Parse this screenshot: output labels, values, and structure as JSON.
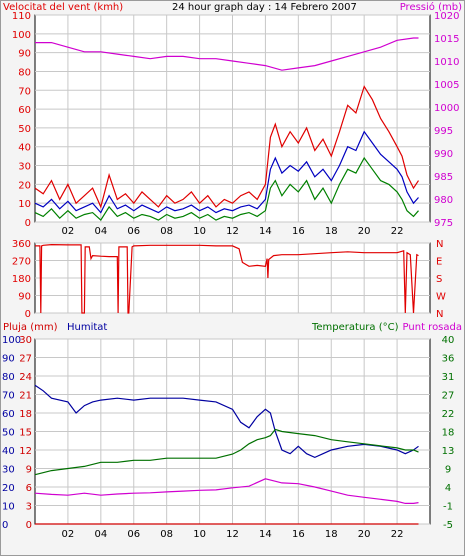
{
  "colors": {
    "wind": "#e00000",
    "wind_avg": "#0000c0",
    "wind_gust2": "#008000",
    "pressure": "#d000d0",
    "direction": "#e00000",
    "humidity": "#0000a0",
    "temperature": "#007000",
    "rain": "#d00000",
    "dewpoint": "#d000d0",
    "grid": "#c8c8c8",
    "axis": "#000000"
  },
  "chart_data": [
    {
      "type": "line",
      "title": "24 hour graph day : 14 Febrero 2007",
      "ylabel": "Velocitat del vent (kmh)",
      "y2label": "Pressió (mb)",
      "x_ticks": [
        "02",
        "04",
        "06",
        "08",
        "10",
        "12",
        "14",
        "16",
        "18",
        "20",
        "22"
      ],
      "x_range": [
        0,
        24
      ],
      "ylim": [
        0,
        110
      ],
      "y_ticks": [
        "0",
        "10",
        "20",
        "30",
        "40",
        "50",
        "60",
        "70",
        "80",
        "90",
        "100",
        "110"
      ],
      "y2lim": [
        975,
        1020
      ],
      "y2_ticks": [
        "975",
        "980",
        "985",
        "990",
        "995",
        "1000",
        "1005",
        "1010",
        "1015",
        "1020"
      ],
      "grid": true,
      "series": [
        {
          "key": "gust",
          "x": [
            0,
            0.5,
            1,
            1.5,
            2,
            2.5,
            3,
            3.5,
            4,
            4.5,
            5,
            5.5,
            6,
            6.5,
            7,
            7.5,
            8,
            8.5,
            9,
            9.5,
            10,
            10.5,
            11,
            11.5,
            12,
            12.5,
            13,
            13.5,
            14,
            14.3,
            14.6,
            15,
            15.5,
            16,
            16.5,
            17,
            17.5,
            18,
            18.5,
            19,
            19.5,
            20,
            20.5,
            21,
            21.5,
            22,
            22.3,
            22.6,
            23,
            23.3
          ],
          "values": [
            18,
            15,
            22,
            12,
            20,
            10,
            14,
            18,
            8,
            25,
            12,
            15,
            10,
            16,
            12,
            8,
            14,
            10,
            12,
            16,
            10,
            14,
            8,
            12,
            10,
            14,
            16,
            12,
            20,
            45,
            52,
            40,
            48,
            42,
            50,
            38,
            44,
            35,
            48,
            62,
            58,
            72,
            65,
            55,
            48,
            40,
            35,
            25,
            18,
            22
          ]
        },
        {
          "key": "avg",
          "x": [
            0,
            0.5,
            1,
            1.5,
            2,
            2.5,
            3,
            3.5,
            4,
            4.5,
            5,
            5.5,
            6,
            6.5,
            7,
            7.5,
            8,
            8.5,
            9,
            9.5,
            10,
            10.5,
            11,
            11.5,
            12,
            12.5,
            13,
            13.5,
            14,
            14.3,
            14.6,
            15,
            15.5,
            16,
            16.5,
            17,
            17.5,
            18,
            18.5,
            19,
            19.5,
            20,
            20.5,
            21,
            21.5,
            22,
            22.3,
            22.6,
            23,
            23.3
          ],
          "values": [
            10,
            8,
            12,
            7,
            11,
            6,
            8,
            10,
            5,
            14,
            7,
            9,
            6,
            9,
            7,
            5,
            8,
            6,
            7,
            9,
            6,
            8,
            5,
            7,
            6,
            8,
            9,
            7,
            12,
            28,
            34,
            26,
            30,
            27,
            32,
            24,
            28,
            22,
            30,
            40,
            38,
            48,
            42,
            36,
            32,
            28,
            24,
            16,
            10,
            13
          ]
        },
        {
          "key": "low",
          "x": [
            0,
            0.5,
            1,
            1.5,
            2,
            2.5,
            3,
            3.5,
            4,
            4.5,
            5,
            5.5,
            6,
            6.5,
            7,
            7.5,
            8,
            8.5,
            9,
            9.5,
            10,
            10.5,
            11,
            11.5,
            12,
            12.5,
            13,
            13.5,
            14,
            14.3,
            14.6,
            15,
            15.5,
            16,
            16.5,
            17,
            17.5,
            18,
            18.5,
            19,
            19.5,
            20,
            20.5,
            21,
            21.5,
            22,
            22.3,
            22.6,
            23,
            23.3
          ],
          "values": [
            5,
            3,
            7,
            2,
            6,
            2,
            4,
            5,
            1,
            8,
            3,
            5,
            2,
            4,
            3,
            1,
            4,
            2,
            3,
            5,
            2,
            4,
            1,
            3,
            2,
            4,
            5,
            3,
            6,
            18,
            22,
            14,
            20,
            16,
            22,
            12,
            18,
            10,
            20,
            28,
            26,
            34,
            28,
            22,
            20,
            16,
            12,
            6,
            3,
            6
          ]
        },
        {
          "key": "pressure",
          "axis": "y2",
          "x": [
            0,
            1,
            2,
            3,
            4,
            5,
            6,
            7,
            8,
            9,
            10,
            11,
            12,
            13,
            14,
            15,
            16,
            17,
            18,
            19,
            20,
            21,
            22,
            23,
            23.3
          ],
          "values": [
            1014,
            1014,
            1013,
            1012,
            1012,
            1011.5,
            1011,
            1010.5,
            1011,
            1011,
            1010.5,
            1010.5,
            1010,
            1009.5,
            1009,
            1008,
            1008.5,
            1009,
            1010,
            1011,
            1012,
            1013,
            1014.5,
            1015,
            1015
          ]
        }
      ]
    },
    {
      "type": "line",
      "ylim": [
        0,
        360
      ],
      "y_ticks": [
        "0",
        "90",
        "180",
        "270",
        "360"
      ],
      "y2_ticks": [
        "N",
        "W",
        "S",
        "E",
        "N"
      ],
      "x_range": [
        0,
        24
      ],
      "grid": true,
      "series": [
        {
          "key": "direction",
          "x": [
            0,
            0.3,
            0.35,
            0.4,
            0.5,
            1,
            2,
            2.8,
            2.85,
            3.0,
            3.05,
            3.3,
            3.4,
            3.5,
            4,
            4.5,
            5.0,
            5.05,
            5.1,
            5.2,
            5.6,
            5.65,
            5.7,
            5.9,
            6,
            7,
            8,
            9,
            10,
            11,
            12,
            12.4,
            12.6,
            13,
            13.5,
            14,
            14.1,
            14.15,
            14.2,
            14.5,
            15,
            16,
            17,
            18,
            19,
            20,
            21,
            22,
            22.4,
            22.5,
            22.6,
            22.8,
            23,
            23.2,
            23.3
          ],
          "values": [
            345,
            345,
            0,
            345,
            348,
            352,
            350,
            350,
            0,
            0,
            340,
            340,
            280,
            295,
            292,
            290,
            290,
            0,
            340,
            340,
            340,
            0,
            0,
            340,
            345,
            348,
            348,
            348,
            348,
            345,
            345,
            330,
            260,
            240,
            245,
            240,
            280,
            180,
            275,
            295,
            300,
            300,
            305,
            310,
            315,
            310,
            310,
            310,
            320,
            0,
            310,
            300,
            0,
            300,
            295
          ]
        }
      ]
    },
    {
      "type": "line",
      "x_ticks": [
        "02",
        "04",
        "06",
        "08",
        "10",
        "12",
        "14",
        "16",
        "18",
        "20",
        "22"
      ],
      "x_range": [
        0,
        24
      ],
      "labels": {
        "rain": "Pluja (mm)",
        "humidity": "Humitat",
        "temperature": "Temperatura (°C)",
        "dewpoint": "Punt rosada"
      },
      "rain_ylim": [
        0,
        30
      ],
      "rain_ticks": [
        "0",
        "3",
        "6",
        "9",
        "12",
        "15",
        "18",
        "21",
        "24",
        "27",
        "30"
      ],
      "humidity_ylim": [
        0,
        100
      ],
      "humidity_ticks": [
        "0",
        "10",
        "20",
        "30",
        "40",
        "50",
        "60",
        "70",
        "80",
        "90",
        "100"
      ],
      "temp_ylim": [
        -5,
        40
      ],
      "temp_ticks": [
        "-5",
        "-1",
        "4",
        "9",
        "13",
        "18",
        "22",
        "27",
        "31",
        "36",
        "40"
      ],
      "grid": true,
      "series": [
        {
          "key": "humidity",
          "axis": "humidity",
          "x": [
            0,
            0.5,
            1,
            2,
            2.5,
            3,
            3.5,
            4,
            5,
            6,
            7,
            8,
            9,
            10,
            11,
            12,
            12.5,
            13,
            13.5,
            14,
            14.3,
            14.6,
            15,
            15.5,
            16,
            16.5,
            17,
            17.5,
            18,
            19,
            20,
            21,
            22,
            22.5,
            23,
            23.3
          ],
          "values": [
            75,
            72,
            68,
            66,
            60,
            64,
            66,
            67,
            68,
            67,
            68,
            68,
            68,
            67,
            66,
            62,
            55,
            52,
            58,
            62,
            60,
            50,
            40,
            38,
            42,
            38,
            36,
            38,
            40,
            42,
            43,
            42,
            40,
            38,
            40,
            42
          ]
        },
        {
          "key": "temperature",
          "axis": "temp",
          "x": [
            0,
            1,
            2,
            3,
            4,
            5,
            6,
            7,
            8,
            9,
            10,
            11,
            12,
            12.5,
            13,
            13.5,
            14,
            14.3,
            14.6,
            15,
            16,
            17,
            18,
            19,
            20,
            21,
            22,
            22.5,
            23,
            23.3
          ],
          "values": [
            7,
            8,
            8.5,
            9,
            10,
            10,
            10.5,
            10.5,
            11,
            11,
            11,
            11,
            12,
            13,
            14.5,
            15.5,
            16,
            16.5,
            18,
            17.5,
            17,
            16.5,
            15.5,
            15,
            14.5,
            14,
            13.5,
            13,
            13,
            12.5
          ]
        },
        {
          "key": "dewpoint",
          "axis": "temp",
          "x": [
            0,
            1,
            2,
            3,
            4,
            5,
            6,
            7,
            8,
            9,
            10,
            11,
            12,
            13,
            14,
            14.5,
            15,
            16,
            17,
            18,
            19,
            20,
            21,
            22,
            22.5,
            23,
            23.3
          ],
          "values": [
            2.5,
            2.2,
            2,
            2.5,
            2,
            2.3,
            2.5,
            2.6,
            2.8,
            3,
            3.2,
            3.3,
            3.8,
            4.2,
            6,
            5.5,
            5,
            4.8,
            4,
            3,
            2,
            1.5,
            1,
            0.5,
            0,
            0,
            0.2
          ]
        },
        {
          "key": "rain",
          "axis": "rain",
          "x": [
            0,
            23.3
          ],
          "values": [
            0,
            0
          ]
        }
      ]
    }
  ]
}
